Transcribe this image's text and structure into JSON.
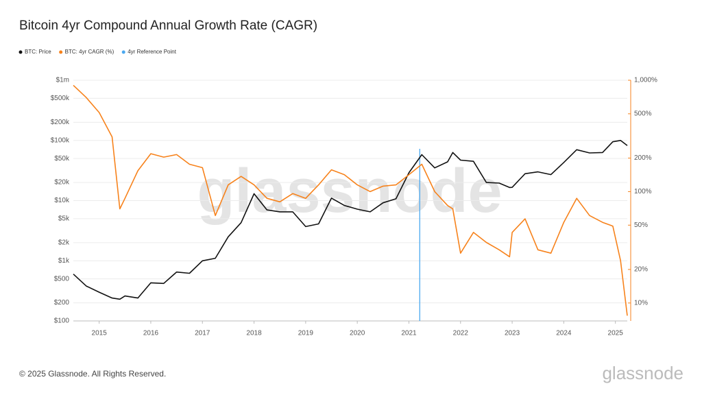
{
  "chart_data": {
    "type": "line",
    "title": "Bitcoin 4yr Compound Annual Growth Rate (CAGR)",
    "x": [
      2014.5,
      2014.75,
      2015.0,
      2015.25,
      2015.4,
      2015.5,
      2015.75,
      2016.0,
      2016.25,
      2016.5,
      2016.75,
      2017.0,
      2017.25,
      2017.5,
      2017.75,
      2018.0,
      2018.25,
      2018.5,
      2018.75,
      2019.0,
      2019.25,
      2019.5,
      2019.75,
      2020.0,
      2020.25,
      2020.5,
      2020.75,
      2021.0,
      2021.25,
      2021.5,
      2021.75,
      2021.85,
      2022.0,
      2022.25,
      2022.5,
      2022.75,
      2022.95,
      2023.0,
      2023.25,
      2023.5,
      2023.75,
      2024.0,
      2024.25,
      2024.5,
      2024.75,
      2024.95,
      2025.1,
      2025.23
    ],
    "series": [
      {
        "name": "BTC: Price",
        "color": "#111111",
        "axis": "y",
        "values": [
          600,
          380,
          300,
          240,
          230,
          260,
          240,
          430,
          420,
          650,
          620,
          1000,
          1100,
          2500,
          4300,
          13000,
          7000,
          6500,
          6500,
          3700,
          4100,
          11000,
          8300,
          7200,
          6500,
          9200,
          10700,
          29000,
          58000,
          35000,
          44000,
          63000,
          47000,
          45000,
          20000,
          19500,
          16500,
          16600,
          28000,
          30000,
          27000,
          43000,
          70000,
          62000,
          63000,
          95000,
          100000,
          82000
        ]
      },
      {
        "name": "BTC: 4yr CAGR (%)",
        "color": "#f7821b",
        "axis": "y2",
        "values": [
          900,
          700,
          513,
          310,
          70,
          87,
          154,
          219,
          204,
          215,
          176,
          164,
          61,
          115,
          137,
          115,
          87,
          81,
          96,
          87,
          115,
          157,
          142,
          115,
          100,
          112,
          115,
          142,
          176,
          100,
          75,
          70,
          28,
          43,
          35,
          30,
          26,
          43,
          57,
          30,
          28,
          53,
          87,
          61,
          53,
          49,
          24,
          7.7
        ]
      }
    ],
    "reference_line": {
      "name": "4yr Reference Point",
      "color": "#4aa8f0",
      "x": 2021.21
    },
    "xlim": [
      2014.5,
      2025.23
    ],
    "xticks": [
      2015,
      2016,
      2017,
      2018,
      2019,
      2020,
      2021,
      2022,
      2023,
      2024,
      2025
    ],
    "ylim": [
      100,
      1000000
    ],
    "log_y": true,
    "yticks": [
      {
        "value": 100,
        "label": "$100"
      },
      {
        "value": 200,
        "label": "$200"
      },
      {
        "value": 500,
        "label": "$500"
      },
      {
        "value": 1000,
        "label": "$1k"
      },
      {
        "value": 2000,
        "label": "$2k"
      },
      {
        "value": 5000,
        "label": "$5k"
      },
      {
        "value": 10000,
        "label": "$10k"
      },
      {
        "value": 20000,
        "label": "$20k"
      },
      {
        "value": 50000,
        "label": "$50k"
      },
      {
        "value": 100000,
        "label": "$100k"
      },
      {
        "value": 200000,
        "label": "$200k"
      },
      {
        "value": 500000,
        "label": "$500k"
      },
      {
        "value": 1000000,
        "label": "$1m"
      }
    ],
    "y2lim": [
      6.9,
      1000
    ],
    "log_y2": true,
    "y2ticks": [
      {
        "value": 10,
        "label": "10%"
      },
      {
        "value": 20,
        "label": "20%"
      },
      {
        "value": 50,
        "label": "50%"
      },
      {
        "value": 100,
        "label": "100%"
      },
      {
        "value": 200,
        "label": "200%"
      },
      {
        "value": 500,
        "label": "500%"
      },
      {
        "value": 1000,
        "label": "1,000%"
      }
    ],
    "grid": true,
    "watermark": "glassnode",
    "copyright": "© 2025 Glassnode. All Rights Reserved.",
    "logo": "glassnode"
  }
}
